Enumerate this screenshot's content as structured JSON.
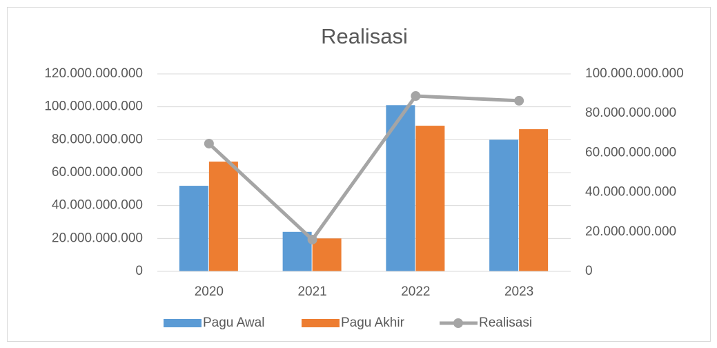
{
  "chart_data": {
    "type": "bar",
    "title": "Realisasi",
    "categories": [
      "2020",
      "2021",
      "2022",
      "2023"
    ],
    "series": [
      {
        "name": "Pagu Awal",
        "color": "#5b9bd5",
        "values": [
          52000000000,
          24000000000,
          101000000000,
          80000000000
        ]
      },
      {
        "name": "Pagu Akhir",
        "color": "#ed7d31",
        "values": [
          66700000000,
          20000000000,
          88500000000,
          86400000000
        ]
      },
      {
        "name": "Realisasi",
        "type": "line",
        "axis": "y2",
        "color": "#a5a5a5",
        "values": [
          64700000000,
          16100000000,
          88800000000,
          86400000000
        ]
      }
    ],
    "ylim": [
      0,
      120000000000
    ],
    "yticks": [
      0,
      {
        "value": 20000000000,
        "label": "20.000.000.000"
      },
      {
        "value": 40000000000,
        "label": "40.000.000.000"
      },
      {
        "value": 60000000000,
        "label": "60.000.000.000"
      },
      {
        "value": 80000000000,
        "label": "80.000.000.000"
      },
      {
        "value": 100000000000,
        "label": "100.000.000.000"
      },
      {
        "value": 120000000000,
        "label": "120.000.000.000"
      }
    ],
    "y2lim": [
      0,
      100000000000
    ],
    "y2ticks": [
      0,
      {
        "value": 20000000000,
        "label": "20.000.000.000"
      },
      {
        "value": 40000000000,
        "label": "40.000.000.000"
      },
      {
        "value": 60000000000,
        "label": "60.000.000.000"
      },
      {
        "value": 80000000000,
        "label": "80.000.000.000"
      },
      {
        "value": 100000000000,
        "label": "100.000.000.000"
      }
    ],
    "grid": true,
    "legend": "bottom"
  }
}
